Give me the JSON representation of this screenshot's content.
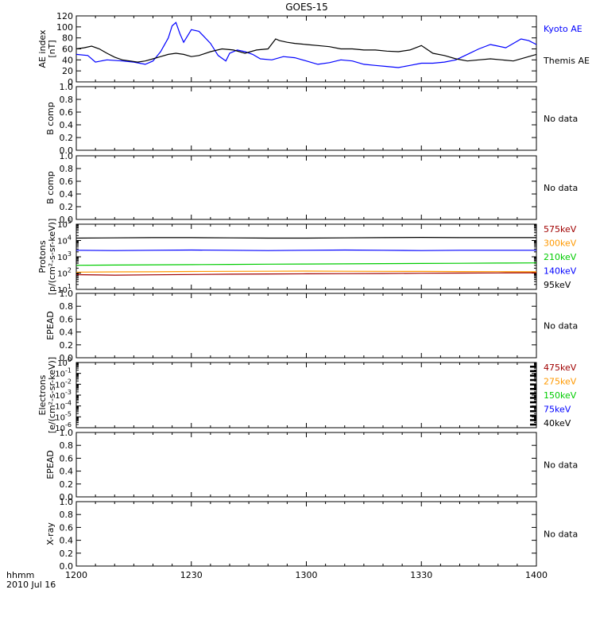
{
  "title": "GOES-15",
  "time_axis": {
    "ticks": [
      {
        "label": "1200",
        "t": 0
      },
      {
        "label": "1230",
        "t": 30
      },
      {
        "label": "1300",
        "t": 60
      },
      {
        "label": "1330",
        "t": 90
      },
      {
        "label": "1400",
        "t": 120
      }
    ],
    "corner_label": "hhmm",
    "date_label": "2010 Jul 16"
  },
  "no_data_label": "No data",
  "colors": {
    "axis": "#000000",
    "kyoto": "#0000ff",
    "themis": "#000000",
    "dark_red": "#a00000",
    "orange": "#ff9900",
    "green": "#00cc00",
    "blue": "#0000ff",
    "black": "#000000"
  },
  "chart_data": [
    {
      "type": "line",
      "panel": "ae",
      "ylabel_lines": [
        "AE index",
        "[nT]"
      ],
      "ylim": [
        0,
        120
      ],
      "yticks": [
        "0",
        "20",
        "40",
        "60",
        "80",
        "100",
        "120"
      ],
      "x_unit": "minutes after 12:00",
      "series": [
        {
          "name": "Kyoto AE",
          "color": "#0000ff",
          "x": [
            0,
            3,
            5,
            8,
            12,
            15,
            18,
            20,
            22,
            24,
            25,
            26,
            27,
            28,
            30,
            32,
            35,
            37,
            39,
            40,
            42,
            44,
            46,
            48,
            51,
            54,
            57,
            60,
            63,
            66,
            69,
            72,
            75,
            78,
            81,
            84,
            87,
            90,
            93,
            96,
            99,
            102,
            105,
            108,
            110,
            112,
            114,
            116,
            118,
            120
          ],
          "y": [
            50,
            48,
            36,
            40,
            38,
            36,
            32,
            38,
            55,
            80,
            102,
            108,
            88,
            72,
            95,
            92,
            70,
            48,
            38,
            52,
            58,
            55,
            50,
            42,
            40,
            46,
            44,
            38,
            32,
            35,
            40,
            38,
            32,
            30,
            28,
            26,
            30,
            34,
            34,
            36,
            40,
            50,
            60,
            68,
            65,
            62,
            70,
            78,
            75,
            68
          ]
        },
        {
          "name": "Themis AE",
          "color": "#000000",
          "x": [
            0,
            2,
            4,
            6,
            8,
            10,
            12,
            14,
            16,
            18,
            20,
            22,
            24,
            26,
            28,
            30,
            32,
            35,
            38,
            41,
            44,
            47,
            50,
            52,
            53,
            55,
            57,
            60,
            63,
            66,
            69,
            72,
            75,
            78,
            81,
            84,
            87,
            90,
            93,
            96,
            99,
            102,
            105,
            108,
            111,
            114,
            117,
            120
          ],
          "y": [
            60,
            62,
            65,
            60,
            52,
            45,
            40,
            38,
            36,
            38,
            42,
            46,
            50,
            52,
            50,
            46,
            48,
            55,
            60,
            58,
            52,
            58,
            60,
            78,
            75,
            72,
            70,
            68,
            66,
            64,
            60,
            60,
            58,
            58,
            56,
            55,
            58,
            66,
            52,
            48,
            42,
            38,
            40,
            42,
            40,
            38,
            44,
            50
          ]
        }
      ]
    },
    {
      "type": "line",
      "panel": "protons",
      "ylabel_lines": [
        "Protons",
        "[p/(cm²-s-sr-keV)]"
      ],
      "yscale": "log",
      "ylim": [
        10,
        100000
      ],
      "ytick_exponents": [
        "1",
        "2",
        "3",
        "4",
        "5"
      ],
      "x_unit": "minutes after 12:00",
      "x": [
        0,
        10,
        20,
        30,
        40,
        50,
        60,
        70,
        80,
        90,
        100,
        110,
        120
      ],
      "series": [
        {
          "name": "575keV",
          "color": "#a00000",
          "values": [
            80,
            75,
            78,
            82,
            85,
            88,
            90,
            92,
            95,
            98,
            100,
            102,
            105
          ]
        },
        {
          "name": "300keV",
          "color": "#ff9900",
          "values": [
            115,
            118,
            120,
            125,
            128,
            130,
            132,
            130,
            128,
            126,
            124,
            122,
            120
          ]
        },
        {
          "name": "210keV",
          "color": "#00cc00",
          "values": [
            300,
            310,
            320,
            330,
            340,
            350,
            360,
            370,
            380,
            390,
            400,
            410,
            420
          ]
        },
        {
          "name": "140keV",
          "color": "#0000ff",
          "values": [
            2500,
            2400,
            2500,
            2600,
            2500,
            2400,
            2500,
            2600,
            2500,
            2400,
            2500,
            2500,
            2500
          ]
        },
        {
          "name": "95keV",
          "color": "#000000",
          "values": [
            14000,
            14500,
            15000,
            15000,
            14500,
            14000,
            14000,
            14500,
            15000,
            15500,
            15000,
            15000,
            15000
          ]
        }
      ]
    },
    {
      "type": "line",
      "panel": "electrons",
      "ylabel_lines": [
        "Electrons",
        "[e/(cm²-s-sr-keV)]"
      ],
      "yscale": "log",
      "ylim": [
        1e-06,
        1
      ],
      "ytick_exponents": [
        "-6",
        "-5",
        "-4",
        "-3",
        "-2",
        "-1",
        "0"
      ],
      "series": [
        {
          "name": "475keV",
          "color": "#a00000",
          "values": []
        },
        {
          "name": "275keV",
          "color": "#ff9900",
          "values": []
        },
        {
          "name": "150keV",
          "color": "#00cc00",
          "values": []
        },
        {
          "name": "75keV",
          "color": "#0000ff",
          "values": []
        },
        {
          "name": "40keV",
          "color": "#000000",
          "values": []
        }
      ]
    }
  ],
  "empty_panels": [
    {
      "id": "b-comp-1",
      "ylabel": "B comp",
      "yticks": [
        "0.0",
        "0.2",
        "0.4",
        "0.6",
        "0.8",
        "1.0"
      ]
    },
    {
      "id": "b-comp-2",
      "ylabel": "B comp",
      "yticks": [
        "0.0",
        "0.2",
        "0.4",
        "0.6",
        "0.8",
        "1.0"
      ]
    },
    {
      "id": "epead-1",
      "ylabel": "EPEAD",
      "yticks": [
        "0.0",
        "0.2",
        "0.4",
        "0.6",
        "0.8",
        "1.0"
      ]
    },
    {
      "id": "epead-2",
      "ylabel": "EPEAD",
      "yticks": [
        "0.0",
        "0.2",
        "0.4",
        "0.6",
        "0.8",
        "1.0"
      ]
    },
    {
      "id": "x-ray",
      "ylabel": "X-ray",
      "yticks": [
        "0.0",
        "0.2",
        "0.4",
        "0.6",
        "0.8",
        "1.0"
      ]
    }
  ]
}
